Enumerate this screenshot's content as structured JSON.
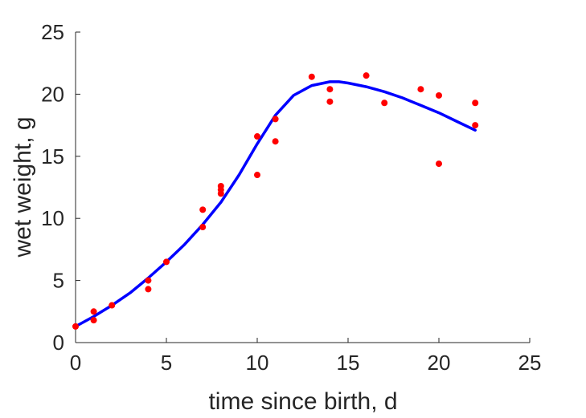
{
  "chart_data": {
    "type": "scatter",
    "xlabel": "time since birth, d",
    "ylabel": "wet weight, g",
    "xlim": [
      0,
      25
    ],
    "ylim": [
      0,
      25
    ],
    "xticks": [
      "0",
      "5",
      "10",
      "15",
      "20",
      "25"
    ],
    "yticks": [
      "0",
      "5",
      "10",
      "15",
      "20",
      "25"
    ],
    "grid": false,
    "series": [
      {
        "kind": "points",
        "color": "#ff0000",
        "points": [
          [
            0,
            1.3
          ],
          [
            1,
            2.5
          ],
          [
            1,
            1.8
          ],
          [
            2,
            3.0
          ],
          [
            4,
            5.0
          ],
          [
            4,
            4.3
          ],
          [
            5,
            6.5
          ],
          [
            7,
            10.7
          ],
          [
            7,
            9.3
          ],
          [
            8,
            12.6
          ],
          [
            8,
            12.3
          ],
          [
            8,
            12.0
          ],
          [
            10,
            16.6
          ],
          [
            10,
            13.5
          ],
          [
            11,
            18.0
          ],
          [
            11,
            16.2
          ],
          [
            13,
            21.4
          ],
          [
            14,
            20.4
          ],
          [
            14,
            19.4
          ],
          [
            16,
            21.5
          ],
          [
            17,
            19.3
          ],
          [
            19,
            20.4
          ],
          [
            20,
            19.9
          ],
          [
            20,
            14.4
          ],
          [
            22,
            19.3
          ],
          [
            22,
            17.5
          ]
        ]
      },
      {
        "kind": "line",
        "color": "#0000ff",
        "points": [
          [
            0,
            1.3
          ],
          [
            1,
            2.1
          ],
          [
            2,
            3.0
          ],
          [
            3,
            4.0
          ],
          [
            4,
            5.2
          ],
          [
            5,
            6.5
          ],
          [
            6,
            7.9
          ],
          [
            7,
            9.5
          ],
          [
            8,
            11.3
          ],
          [
            9,
            13.5
          ],
          [
            10,
            16.0
          ],
          [
            11,
            18.3
          ],
          [
            12,
            19.9
          ],
          [
            13,
            20.7
          ],
          [
            14,
            21.0
          ],
          [
            14.5,
            21.0
          ],
          [
            15,
            20.9
          ],
          [
            16,
            20.6
          ],
          [
            17,
            20.2
          ],
          [
            18,
            19.7
          ],
          [
            19,
            19.1
          ],
          [
            20,
            18.5
          ],
          [
            21,
            17.8
          ],
          [
            22,
            17.1
          ]
        ]
      }
    ]
  }
}
